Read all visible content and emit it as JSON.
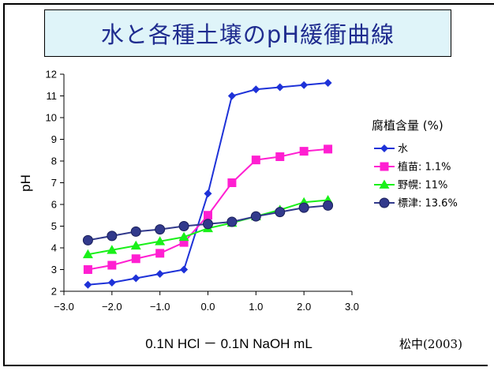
{
  "title": "水と各種土壌のpH緩衝曲線",
  "source": "松中(2003)",
  "colors": {
    "title_bg": "#dff4f9",
    "title_text": "#1f2c8f"
  },
  "chart_data": {
    "type": "line",
    "title": "水と各種土壌のpH緩衝曲線",
    "xlabel": "0.1N HCl － 0.1N NaOH mL",
    "ylabel": "pH",
    "xlim": [
      -3.0,
      3.0
    ],
    "ylim": [
      2,
      12
    ],
    "x_ticks": [
      "−3.0",
      "−2.0",
      "−1.0",
      "0.0",
      "1.0",
      "2.0",
      "3.0"
    ],
    "y_ticks": [
      "2",
      "3",
      "4",
      "5",
      "6",
      "7",
      "8",
      "9",
      "10",
      "11",
      "12"
    ],
    "grid": false,
    "legend_title": "腐植含量 (%)",
    "legend_position": "right",
    "x": [
      -2.5,
      -2.0,
      -1.5,
      -1.0,
      -0.5,
      0.0,
      0.5,
      1.0,
      1.5,
      2.0,
      2.5
    ],
    "series": [
      {
        "name": "水",
        "color": "#1e32d8",
        "marker": "diamond",
        "values": [
          2.3,
          2.4,
          2.6,
          2.8,
          3.0,
          6.5,
          11.0,
          11.3,
          11.4,
          11.5,
          11.6
        ]
      },
      {
        "name": "植苗: 1.1%",
        "color": "#ff1fd1",
        "marker": "square",
        "values": [
          3.0,
          3.2,
          3.5,
          3.75,
          4.25,
          5.5,
          7.0,
          8.05,
          8.2,
          8.45,
          8.55
        ]
      },
      {
        "name": "野幌: 11%",
        "color": "#19f019",
        "marker": "triangle",
        "values": [
          3.7,
          3.9,
          4.1,
          4.3,
          4.5,
          4.9,
          5.15,
          5.45,
          5.75,
          6.1,
          6.2
        ]
      },
      {
        "name": "標津: 13.6%",
        "color": "#323a8c",
        "marker": "circle",
        "values": [
          4.35,
          4.55,
          4.75,
          4.85,
          5.0,
          5.1,
          5.2,
          5.45,
          5.65,
          5.85,
          5.95
        ]
      }
    ]
  }
}
